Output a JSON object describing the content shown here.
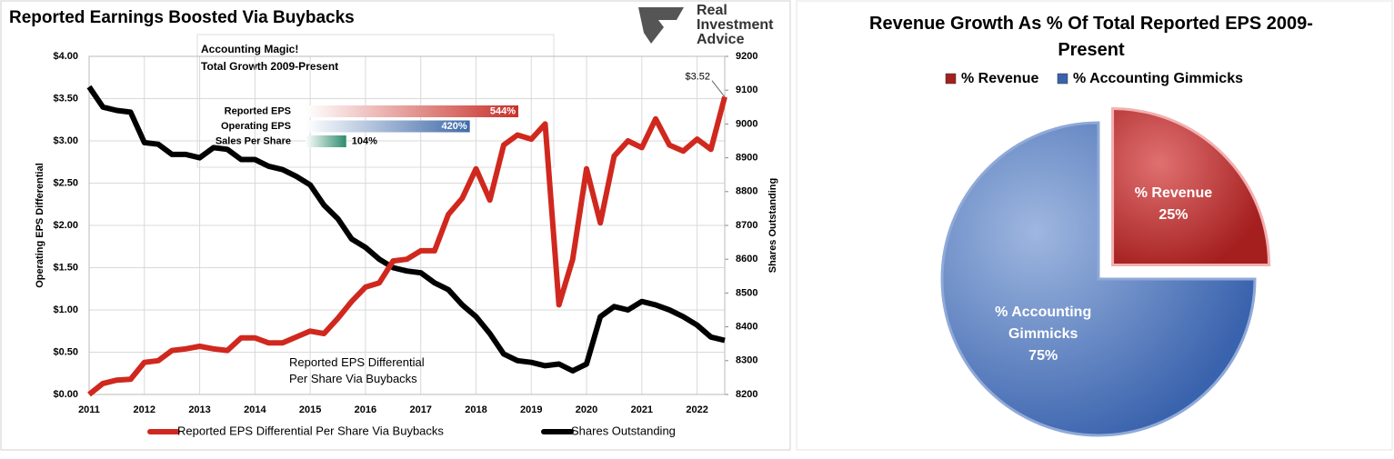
{
  "logo": {
    "lines": [
      "Real",
      "Investment",
      "Advice"
    ]
  },
  "chart_data": [
    {
      "type": "line",
      "title": "Reported Earnings Boosted Via Buybacks",
      "x": [
        2011,
        2011.25,
        2011.5,
        2011.75,
        2012,
        2012.25,
        2012.5,
        2012.75,
        2013,
        2013.25,
        2013.5,
        2013.75,
        2014,
        2014.25,
        2014.5,
        2014.75,
        2015,
        2015.25,
        2015.5,
        2015.75,
        2016,
        2016.25,
        2016.5,
        2016.75,
        2017,
        2017.25,
        2017.5,
        2017.75,
        2018,
        2018.25,
        2018.5,
        2018.75,
        2019,
        2019.25,
        2019.5,
        2019.75,
        2020,
        2020.25,
        2020.5,
        2020.75,
        2021,
        2021.25,
        2021.5,
        2021.75,
        2022,
        2022.25,
        2022.5
      ],
      "xlim": [
        2011,
        2022.5
      ],
      "xticks": [
        2011,
        2012,
        2013,
        2014,
        2015,
        2016,
        2017,
        2018,
        2019,
        2020,
        2021,
        2022
      ],
      "ylim": [
        0,
        4
      ],
      "yticks": [
        {
          "value": 0,
          "label": "$0.00"
        },
        {
          "value": 0.5,
          "label": "$0.50"
        },
        {
          "value": 1,
          "label": "$1.00"
        },
        {
          "value": 1.5,
          "label": "$1.50"
        },
        {
          "value": 2,
          "label": "$2.00"
        },
        {
          "value": 2.5,
          "label": "$2.50"
        },
        {
          "value": 3,
          "label": "$3.00"
        },
        {
          "value": 3.5,
          "label": "$3.50"
        },
        {
          "value": 4,
          "label": "$4.00"
        }
      ],
      "y2lim": [
        8200,
        9200
      ],
      "y2ticks": [
        8200,
        8300,
        8400,
        8500,
        8600,
        8700,
        8800,
        8900,
        9000,
        9100,
        9200
      ],
      "ylabel": "Operating EPS Differential",
      "y2label": "Shares Outstanding",
      "grid": true,
      "legend": "bottom",
      "series": [
        {
          "name": "Reported EPS Differential Per Share Via Buybacks",
          "color": "#d0281e",
          "values": [
            0.0,
            0.13,
            0.17,
            0.18,
            0.38,
            0.4,
            0.52,
            0.54,
            0.57,
            0.54,
            0.52,
            0.67,
            0.67,
            0.61,
            0.61,
            0.68,
            0.75,
            0.72,
            0.9,
            1.1,
            1.27,
            1.32,
            1.58,
            1.6,
            1.7,
            1.7,
            2.13,
            2.32,
            2.67,
            2.3,
            2.95,
            3.07,
            3.02,
            3.2,
            1.06,
            1.6,
            2.67,
            2.03,
            2.82,
            3.0,
            2.92,
            3.26,
            2.95,
            2.88,
            3.02,
            2.9,
            3.52
          ]
        },
        {
          "name": "Shares Outstanding",
          "color": "#000000",
          "axis": "y2",
          "values": [
            9110,
            9050,
            9040,
            9035,
            8945,
            8940,
            8910,
            8910,
            8900,
            8930,
            8925,
            8895,
            8895,
            8875,
            8865,
            8845,
            8820,
            8760,
            8720,
            8660,
            8635,
            8600,
            8575,
            8565,
            8560,
            8530,
            8510,
            8465,
            8430,
            8380,
            8320,
            8300,
            8295,
            8285,
            8290,
            8270,
            8290,
            8430,
            8460,
            8450,
            8475,
            8465,
            8450,
            8430,
            8405,
            8370,
            8360
          ]
        }
      ],
      "annotations": [
        "$3.52",
        "Reported EPS Differential Per Share Via Buybacks"
      ]
    },
    {
      "type": "hbar",
      "title": "Accounting Magic!",
      "subtitle": "Total Growth 2009-Present",
      "categories": [
        "Reported EPS",
        "Operating EPS",
        "Sales Per Share"
      ],
      "values": [
        544,
        420,
        104
      ],
      "value_labels": [
        "544%",
        "420%",
        "104%"
      ],
      "colors": [
        "#c8312a",
        "#3f6aa8",
        "#2e8b6e"
      ]
    },
    {
      "type": "pie",
      "title": "Revenue Growth As % Of Total Reported EPS 2009-Present",
      "categories": [
        "% Revenue",
        "% Accounting Gimmicks"
      ],
      "values": [
        25,
        75
      ],
      "value_labels": [
        "25%",
        "75%"
      ],
      "colors": [
        "#a51f1f",
        "#3a63ad"
      ],
      "legend": "top"
    }
  ]
}
